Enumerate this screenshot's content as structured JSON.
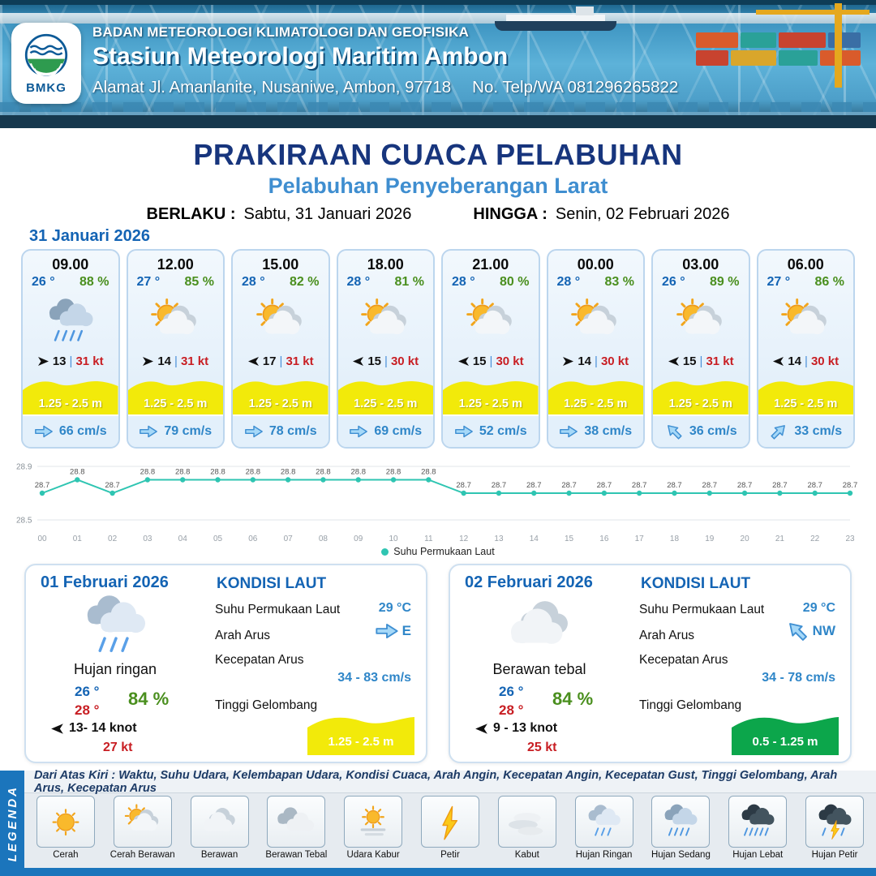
{
  "header": {
    "logo_text": "BMKG",
    "org": "BADAN METEOROLOGI KLIMATOLOGI DAN GEOFISIKA",
    "station": "Stasiun Meteorologi Maritim Ambon",
    "address": "Alamat Jl. Amanlanite, Nusaniwe, Ambon, 97718",
    "phone": "No. Telp/WA  081296265822"
  },
  "title": {
    "main": "PRAKIRAAN CUACA PELABUHAN",
    "subtitle": "Pelabuhan Penyeberangan Larat",
    "berlaku_label": "BERLAKU :",
    "berlaku_value": "Sabtu, 31 Januari 2026",
    "hingga_label": "HINGGA :",
    "hingga_value": "Senin, 02 Februari 2026"
  },
  "forecast_date": "31 Januari 2026",
  "forecast_cards": [
    {
      "time": "09.00",
      "temp": "26 °",
      "humidity": "88 %",
      "icon": "hujan-sedang",
      "wind_arrow": "right",
      "wind_speed": "13",
      "gust": "31 kt",
      "wave": "1.25 - 2.5 m",
      "current_dir": "E",
      "current": "66 cm/s"
    },
    {
      "time": "12.00",
      "temp": "27 °",
      "humidity": "85 %",
      "icon": "cerah-berawan",
      "wind_arrow": "right",
      "wind_speed": "14",
      "gust": "31 kt",
      "wave": "1.25 - 2.5 m",
      "current_dir": "E",
      "current": "79 cm/s"
    },
    {
      "time": "15.00",
      "temp": "28 °",
      "humidity": "82 %",
      "icon": "cerah-berawan",
      "wind_arrow": "left",
      "wind_speed": "17",
      "gust": "31 kt",
      "wave": "1.25 - 2.5 m",
      "current_dir": "E",
      "current": "78 cm/s"
    },
    {
      "time": "18.00",
      "temp": "28 °",
      "humidity": "81 %",
      "icon": "cerah-berawan",
      "wind_arrow": "left",
      "wind_speed": "15",
      "gust": "30 kt",
      "wave": "1.25 - 2.5 m",
      "current_dir": "E",
      "current": "69 cm/s"
    },
    {
      "time": "21.00",
      "temp": "28 °",
      "humidity": "80 %",
      "icon": "cerah-berawan",
      "wind_arrow": "left",
      "wind_speed": "15",
      "gust": "30 kt",
      "wave": "1.25 - 2.5 m",
      "current_dir": "E",
      "current": "52 cm/s"
    },
    {
      "time": "00.00",
      "temp": "28 °",
      "humidity": "83 %",
      "icon": "cerah-berawan",
      "wind_arrow": "right",
      "wind_speed": "14",
      "gust": "30 kt",
      "wave": "1.25 - 2.5 m",
      "current_dir": "E",
      "current": "38 cm/s"
    },
    {
      "time": "03.00",
      "temp": "26 °",
      "humidity": "89 %",
      "icon": "cerah-berawan",
      "wind_arrow": "left",
      "wind_speed": "15",
      "gust": "31 kt",
      "wave": "1.25 - 2.5 m",
      "current_dir": "NW",
      "current": "36 cm/s"
    },
    {
      "time": "06.00",
      "temp": "27 °",
      "humidity": "86 %",
      "icon": "cerah-berawan",
      "wind_arrow": "left",
      "wind_speed": "14",
      "gust": "30 kt",
      "wave": "1.25 - 2.5 m",
      "current_dir": "NE",
      "current": "33 cm/s"
    }
  ],
  "chart_data": {
    "type": "line",
    "series_label": "Suhu Permukaan Laut",
    "x": [
      "00",
      "01",
      "02",
      "03",
      "04",
      "05",
      "06",
      "07",
      "08",
      "09",
      "10",
      "11",
      "12",
      "13",
      "14",
      "15",
      "16",
      "17",
      "18",
      "19",
      "20",
      "21",
      "22",
      "23"
    ],
    "values": [
      28.7,
      28.8,
      28.7,
      28.8,
      28.8,
      28.8,
      28.8,
      28.8,
      28.8,
      28.8,
      28.8,
      28.8,
      28.7,
      28.7,
      28.7,
      28.7,
      28.7,
      28.7,
      28.7,
      28.7,
      28.7,
      28.7,
      28.7,
      28.7
    ],
    "unit": "°C",
    "ylim": [
      28.5,
      28.9
    ],
    "ytick_labels": [
      "28.9",
      "28.5"
    ],
    "grid": true,
    "legend_position": "bottom"
  },
  "daily": [
    {
      "date": "01 Februari 2026",
      "icon": "hujan-ringan",
      "condition": "Hujan ringan",
      "temp_min": "26 °",
      "temp_max": "28 °",
      "humidity": "84 %",
      "wind_arrow": "left",
      "wind": "13- 14 knot",
      "gust": "27 kt",
      "sea_title": "KONDISI LAUT",
      "sst_label": "Suhu Permukaan Laut",
      "sst": "29 °C",
      "current_dir_label": "Arah Arus",
      "current_dir": "E",
      "current_speed_label": "Kecepatan Arus",
      "current_speed": "34 - 83 cm/s",
      "wave_label": "Tinggi Gelombang",
      "wave": "1.25 - 2.5 m",
      "wave_color": "#f2ea0a"
    },
    {
      "date": "02 Februari 2026",
      "icon": "berawan",
      "condition": "Berawan tebal",
      "temp_min": "26 °",
      "temp_max": "28 °",
      "humidity": "84 %",
      "wind_arrow": "left",
      "wind": "9 - 13 knot",
      "gust": "25 kt",
      "sea_title": "KONDISI LAUT",
      "sst_label": "Suhu Permukaan Laut",
      "sst": "29 °C",
      "current_dir_label": "Arah Arus",
      "current_dir": "NW",
      "current_speed_label": "Kecepatan Arus",
      "current_speed": "34 - 78 cm/s",
      "wave_label": "Tinggi Gelombang",
      "wave": "0.5 - 1.25 m",
      "wave_color": "#0ca64b"
    }
  ],
  "legend": {
    "side_label": "LEGENDA",
    "description": "Dari Atas Kiri : Waktu, Suhu Udara, Kelembapan Udara, Kondisi Cuaca, Arah Angin, Kecepatan Angin, Kecepatan Gust, Tinggi Gelombang, Arah Arus, Kecepatan Arus",
    "items": [
      {
        "label": "Cerah",
        "icon": "cerah"
      },
      {
        "label": "Cerah Berawan",
        "icon": "cerah-berawan"
      },
      {
        "label": "Berawan",
        "icon": "berawan"
      },
      {
        "label": "Berawan Tebal",
        "icon": "berawan-tebal"
      },
      {
        "label": "Udara Kabur",
        "icon": "udara-kabur"
      },
      {
        "label": "Petir",
        "icon": "petir"
      },
      {
        "label": "Kabut",
        "icon": "kabut"
      },
      {
        "label": "Hujan Ringan",
        "icon": "hujan-ringan"
      },
      {
        "label": "Hujan Sedang",
        "icon": "hujan-sedang"
      },
      {
        "label": "Hujan Lebat",
        "icon": "hujan-lebat"
      },
      {
        "label": "Hujan Petir",
        "icon": "hujan-petir"
      }
    ]
  },
  "colors": {
    "title_navy": "#17357d",
    "subtitle_blue": "#3f8ed0",
    "accent_blue": "#1464b4",
    "temp_blue": "#1464b4",
    "humidity_green": "#4a8f1e",
    "gust_red": "#c81e23",
    "current_blue": "#2f86c8",
    "chart_teal": "#2fc5b2",
    "wave_yellow": "#f2ea0a",
    "wave_green": "#0ca64b",
    "legend_blue": "#1b75bc"
  }
}
